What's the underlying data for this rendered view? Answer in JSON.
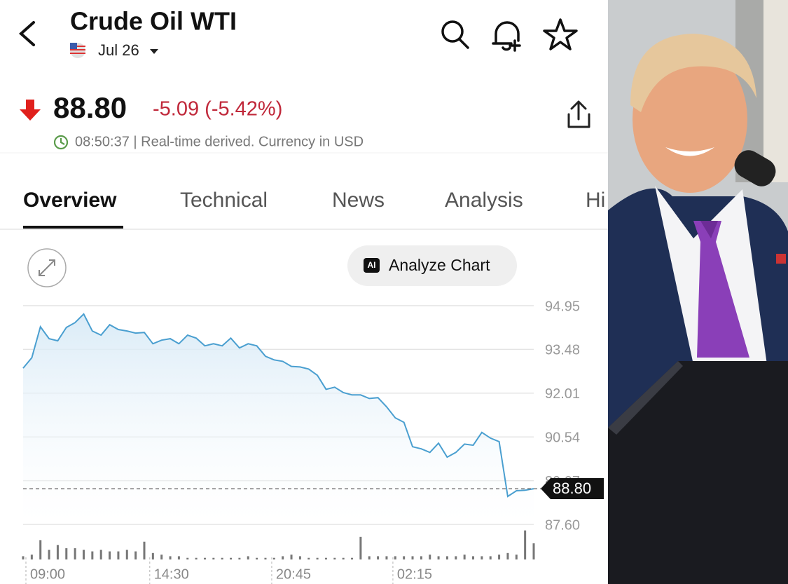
{
  "header": {
    "title": "Crude Oil WTI",
    "date": "Jul 26"
  },
  "quote": {
    "change": "-5.09 (-5.42%)",
    "timestamp": "08:50:37 | Real-time derived. Currency in USD"
  },
  "tabs": [
    "Overview",
    "Technical",
    "News",
    "Analysis",
    "Hi"
  ],
  "toolbar": {
    "ai_badge": "AI",
    "analyze_button": "Analyze Chart"
  },
  "chart_data": {
    "type": "line",
    "color": "#4a9fd0",
    "grid": true,
    "values": [
      92.85,
      93.2,
      94.24,
      93.84,
      93.77,
      94.22,
      94.38,
      94.67,
      94.1,
      93.96,
      94.31,
      94.15,
      94.1,
      94.03,
      94.05,
      93.67,
      93.79,
      93.84,
      93.67,
      93.96,
      93.86,
      93.6,
      93.67,
      93.6,
      93.86,
      93.53,
      93.67,
      93.6,
      93.25,
      93.13,
      93.08,
      92.91,
      92.89,
      92.82,
      92.61,
      92.14,
      92.21,
      92.03,
      91.95,
      91.95,
      91.83,
      91.86,
      91.55,
      91.18,
      91.03,
      90.21,
      90.14,
      90.02,
      90.33,
      89.86,
      90.02,
      90.3,
      90.26,
      90.69,
      90.5,
      90.38,
      88.54,
      88.73,
      88.75,
      88.8
    ],
    "volume": [
      2,
      3,
      12,
      6,
      9,
      7,
      7,
      6,
      5,
      6,
      5,
      5,
      6,
      5,
      11,
      4,
      3,
      2,
      2,
      1,
      1,
      1,
      1,
      1,
      1,
      1,
      2,
      1,
      1,
      1,
      2,
      3,
      2,
      1,
      1,
      1,
      1,
      1,
      1,
      14,
      2,
      2,
      2,
      2,
      2,
      2,
      2,
      3,
      2,
      2,
      2,
      3,
      2,
      2,
      2,
      3,
      4,
      3,
      18,
      10
    ],
    "last_price": {
      "value": 88.8,
      "label": "88.80"
    },
    "ylim": [
      87.6,
      94.95
    ],
    "yticks": [
      94.95,
      93.48,
      92.01,
      90.54,
      89.07,
      {
        "value": 87.6,
        "label": "87.60"
      }
    ],
    "xlim": [
      0,
      59
    ],
    "xticks": [
      {
        "value": 0,
        "label": "09:00"
      },
      {
        "value": 14.3,
        "label": "14:30"
      },
      {
        "value": 28.4,
        "label": "20:45"
      },
      {
        "value": 42.4,
        "label": "02:15"
      }
    ]
  }
}
